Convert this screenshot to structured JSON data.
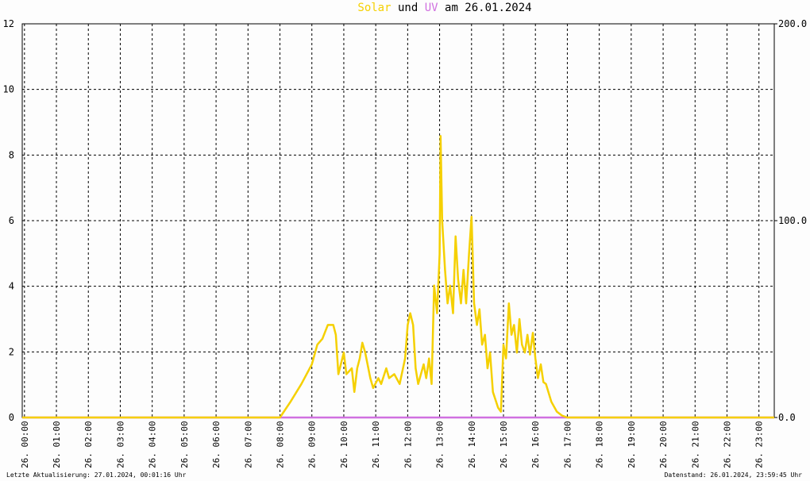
{
  "chart_data": {
    "type": "line",
    "title": {
      "connector": "und",
      "suffix": "am 26.01.2024"
    },
    "xlim": [
      -0.07,
      23.48
    ],
    "xticks": [
      {
        "value": 0,
        "label": "26. 00:00"
      },
      {
        "value": 1,
        "label": "26. 01:00"
      },
      {
        "value": 2,
        "label": "26. 02:00"
      },
      {
        "value": 3,
        "label": "26. 03:00"
      },
      {
        "value": 4,
        "label": "26. 04:00"
      },
      {
        "value": 5,
        "label": "26. 05:00"
      },
      {
        "value": 6,
        "label": "26. 06:00"
      },
      {
        "value": 7,
        "label": "26. 07:00"
      },
      {
        "value": 8,
        "label": "26. 08:00"
      },
      {
        "value": 9,
        "label": "26. 09:00"
      },
      {
        "value": 10,
        "label": "26. 10:00"
      },
      {
        "value": 11,
        "label": "26. 11:00"
      },
      {
        "value": 12,
        "label": "26. 12:00"
      },
      {
        "value": 13,
        "label": "26. 13:00"
      },
      {
        "value": 14,
        "label": "26. 14:00"
      },
      {
        "value": 15,
        "label": "26. 15:00"
      },
      {
        "value": 16,
        "label": "26. 16:00"
      },
      {
        "value": 17,
        "label": "26. 17:00"
      },
      {
        "value": 18,
        "label": "26. 18:00"
      },
      {
        "value": 19,
        "label": "26. 19:00"
      },
      {
        "value": 20,
        "label": "26. 20:00"
      },
      {
        "value": 21,
        "label": "26. 21:00"
      },
      {
        "value": 22,
        "label": "26. 22:00"
      },
      {
        "value": 23,
        "label": "26. 23:00"
      }
    ],
    "ylim": [
      0,
      12
    ],
    "yticks": [
      0,
      2,
      4,
      6,
      8,
      10,
      12
    ],
    "y2lim": [
      0,
      200
    ],
    "y2ticks": [
      {
        "value": 0,
        "label": "0.0"
      },
      {
        "value": 100,
        "label": "100.0"
      },
      {
        "value": 200,
        "label": "200.0"
      }
    ],
    "grid": true,
    "series": [
      {
        "name": "Solar",
        "color": "#f5d000",
        "axis": "y2",
        "x": [
          -0.07,
          8,
          8.33,
          8.67,
          9,
          9.17,
          9.33,
          9.5,
          9.67,
          9.75,
          9.83,
          10,
          10.08,
          10.25,
          10.33,
          10.42,
          10.5,
          10.58,
          10.67,
          10.83,
          10.92,
          11.08,
          11.17,
          11.33,
          11.42,
          11.58,
          11.75,
          11.92,
          12,
          12.08,
          12.17,
          12.25,
          12.33,
          12.5,
          12.58,
          12.67,
          12.75,
          12.83,
          12.92,
          13,
          13.03,
          13.08,
          13.17,
          13.25,
          13.33,
          13.42,
          13.5,
          13.58,
          13.67,
          13.75,
          13.83,
          13.92,
          14,
          14.08,
          14.17,
          14.25,
          14.33,
          14.42,
          14.5,
          14.58,
          14.67,
          14.83,
          14.92,
          15,
          15.08,
          15.17,
          15.25,
          15.33,
          15.42,
          15.5,
          15.58,
          15.67,
          15.75,
          15.83,
          15.92,
          16,
          16.08,
          16.17,
          16.25,
          16.33,
          16.5,
          16.67,
          16.83,
          17,
          23.48
        ],
        "values": [
          0,
          0,
          8,
          17,
          27,
          37,
          40,
          47,
          47,
          42,
          22,
          33,
          22,
          25,
          13,
          25,
          30,
          38,
          33,
          20,
          15,
          20,
          17,
          25,
          20,
          22,
          17,
          30,
          47,
          53,
          47,
          25,
          17,
          27,
          20,
          30,
          17,
          67,
          53,
          83,
          143,
          100,
          75,
          58,
          67,
          53,
          92,
          70,
          58,
          75,
          58,
          83,
          102,
          58,
          47,
          55,
          37,
          42,
          25,
          33,
          13,
          5,
          3,
          37,
          30,
          58,
          42,
          47,
          33,
          50,
          37,
          33,
          42,
          32,
          43,
          30,
          20,
          27,
          18,
          17,
          8,
          3,
          1,
          0,
          0
        ]
      },
      {
        "name": "UV",
        "color": "#d070e0",
        "axis": "y",
        "x": [
          -0.07,
          23.48
        ],
        "values": [
          0,
          0
        ]
      }
    ],
    "footer_left": "Letzte Aktualisierung: 27.01.2024, 00:01:16 Uhr",
    "footer_right": "Datenstand: 26.01.2024, 23:59:45 Uhr"
  }
}
